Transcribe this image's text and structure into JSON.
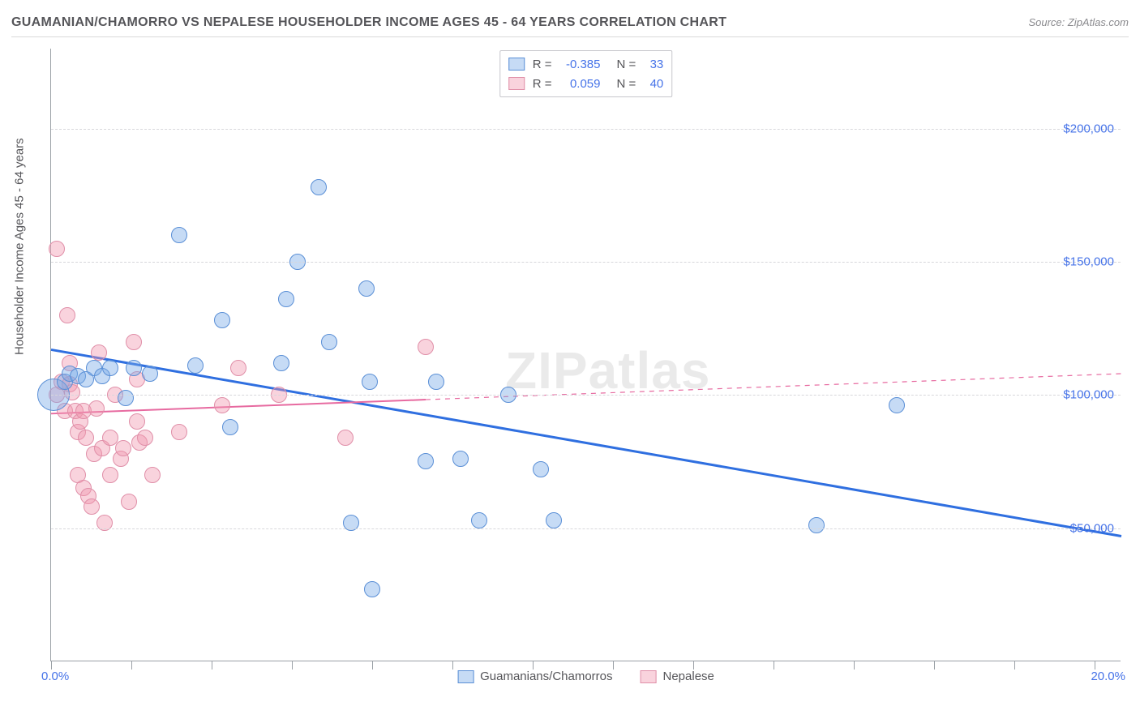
{
  "header": {
    "title": "GUAMANIAN/CHAMORRO VS NEPALESE HOUSEHOLDER INCOME AGES 45 - 64 YEARS CORRELATION CHART",
    "source_label": "Source: ",
    "source_name": "ZipAtlas.com"
  },
  "watermark": "ZIPatlas",
  "chart": {
    "type": "scatter",
    "y_axis_title": "Householder Income Ages 45 - 64 years",
    "xlim": [
      0.0,
      20.0
    ],
    "ylim": [
      0,
      230000
    ],
    "x_tick_label_min": "0.0%",
    "x_tick_label_max": "20.0%",
    "x_ticks_at": [
      0.0,
      1.5,
      3.0,
      4.5,
      6.0,
      7.5,
      9.0,
      10.5,
      12.0,
      13.5,
      15.0,
      16.5,
      18.0,
      19.5
    ],
    "y_gridlines": [
      {
        "value": 50000,
        "label": "$50,000"
      },
      {
        "value": 100000,
        "label": "$100,000"
      },
      {
        "value": 150000,
        "label": "$150,000"
      },
      {
        "value": 200000,
        "label": "$200,000"
      }
    ],
    "colors": {
      "series_a_fill": "rgba(120,170,230,0.42)",
      "series_a_stroke": "#5a8fd6",
      "series_b_fill": "rgba(240,150,175,0.42)",
      "series_b_stroke": "#e08fa8",
      "trend_a": "#2f6fe0",
      "trend_b": "#e76aa0",
      "axis": "#9aa0a6",
      "grid": "#d7d7db",
      "label_blue": "#4673e8",
      "text": "#555559"
    },
    "marker_radius": 10,
    "marker_radius_large": 20,
    "line_width_a": 3,
    "line_width_b": 2,
    "background_color": "#ffffff"
  },
  "legend_top": {
    "rows": [
      {
        "swatch": "a",
        "r_label": "R =",
        "r_value": "-0.385",
        "n_label": "N =",
        "n_value": "33"
      },
      {
        "swatch": "b",
        "r_label": "R =",
        "r_value": "0.059",
        "n_label": "N =",
        "n_value": "40"
      }
    ]
  },
  "legend_bottom": {
    "items": [
      {
        "swatch": "a",
        "label": "Guamanians/Chamorros"
      },
      {
        "swatch": "b",
        "label": "Nepalese"
      }
    ]
  },
  "series_a": {
    "name": "Guamanians/Chamorros",
    "trend": {
      "x1": 0.0,
      "y1": 117000,
      "x2": 20.0,
      "y2": 47000,
      "dash_after_x": null
    },
    "points": [
      {
        "x": 0.05,
        "y": 100000,
        "r": 20
      },
      {
        "x": 0.25,
        "y": 105000
      },
      {
        "x": 0.35,
        "y": 108000
      },
      {
        "x": 0.5,
        "y": 107000
      },
      {
        "x": 0.65,
        "y": 106000
      },
      {
        "x": 0.8,
        "y": 110000
      },
      {
        "x": 0.95,
        "y": 107000
      },
      {
        "x": 1.1,
        "y": 110000
      },
      {
        "x": 1.4,
        "y": 99000
      },
      {
        "x": 1.55,
        "y": 110000
      },
      {
        "x": 1.85,
        "y": 108000
      },
      {
        "x": 2.4,
        "y": 160000
      },
      {
        "x": 2.7,
        "y": 111000
      },
      {
        "x": 3.2,
        "y": 128000
      },
      {
        "x": 3.35,
        "y": 88000
      },
      {
        "x": 4.3,
        "y": 112000
      },
      {
        "x": 4.4,
        "y": 136000
      },
      {
        "x": 4.6,
        "y": 150000
      },
      {
        "x": 5.0,
        "y": 178000
      },
      {
        "x": 5.2,
        "y": 120000
      },
      {
        "x": 5.6,
        "y": 52000
      },
      {
        "x": 5.9,
        "y": 140000
      },
      {
        "x": 5.95,
        "y": 105000
      },
      {
        "x": 6.0,
        "y": 27000
      },
      {
        "x": 7.0,
        "y": 75000
      },
      {
        "x": 7.2,
        "y": 105000
      },
      {
        "x": 7.65,
        "y": 76000
      },
      {
        "x": 8.0,
        "y": 53000
      },
      {
        "x": 8.55,
        "y": 100000
      },
      {
        "x": 9.15,
        "y": 72000
      },
      {
        "x": 9.4,
        "y": 53000
      },
      {
        "x": 14.3,
        "y": 51000
      },
      {
        "x": 15.8,
        "y": 96000
      }
    ]
  },
  "series_b": {
    "name": "Nepalese",
    "trend": {
      "x1": 0.0,
      "y1": 93000,
      "x2": 20.0,
      "y2": 108000,
      "dash_after_x": 7.0
    },
    "points": [
      {
        "x": 0.1,
        "y": 100000
      },
      {
        "x": 0.1,
        "y": 155000
      },
      {
        "x": 0.2,
        "y": 105000
      },
      {
        "x": 0.25,
        "y": 94000
      },
      {
        "x": 0.3,
        "y": 130000
      },
      {
        "x": 0.35,
        "y": 104000
      },
      {
        "x": 0.35,
        "y": 112000
      },
      {
        "x": 0.4,
        "y": 101000
      },
      {
        "x": 0.45,
        "y": 94000
      },
      {
        "x": 0.5,
        "y": 70000
      },
      {
        "x": 0.5,
        "y": 86000
      },
      {
        "x": 0.55,
        "y": 90000
      },
      {
        "x": 0.6,
        "y": 65000
      },
      {
        "x": 0.6,
        "y": 94000
      },
      {
        "x": 0.65,
        "y": 84000
      },
      {
        "x": 0.7,
        "y": 62000
      },
      {
        "x": 0.75,
        "y": 58000
      },
      {
        "x": 0.8,
        "y": 78000
      },
      {
        "x": 0.85,
        "y": 95000
      },
      {
        "x": 0.9,
        "y": 116000
      },
      {
        "x": 0.95,
        "y": 80000
      },
      {
        "x": 1.0,
        "y": 52000
      },
      {
        "x": 1.1,
        "y": 70000
      },
      {
        "x": 1.1,
        "y": 84000
      },
      {
        "x": 1.2,
        "y": 100000
      },
      {
        "x": 1.3,
        "y": 76000
      },
      {
        "x": 1.35,
        "y": 80000
      },
      {
        "x": 1.45,
        "y": 60000
      },
      {
        "x": 1.55,
        "y": 120000
      },
      {
        "x": 1.6,
        "y": 106000
      },
      {
        "x": 1.6,
        "y": 90000
      },
      {
        "x": 1.65,
        "y": 82000
      },
      {
        "x": 1.75,
        "y": 84000
      },
      {
        "x": 1.9,
        "y": 70000
      },
      {
        "x": 2.4,
        "y": 86000
      },
      {
        "x": 3.2,
        "y": 96000
      },
      {
        "x": 3.5,
        "y": 110000
      },
      {
        "x": 4.25,
        "y": 100000
      },
      {
        "x": 5.5,
        "y": 84000
      },
      {
        "x": 7.0,
        "y": 118000
      }
    ]
  }
}
